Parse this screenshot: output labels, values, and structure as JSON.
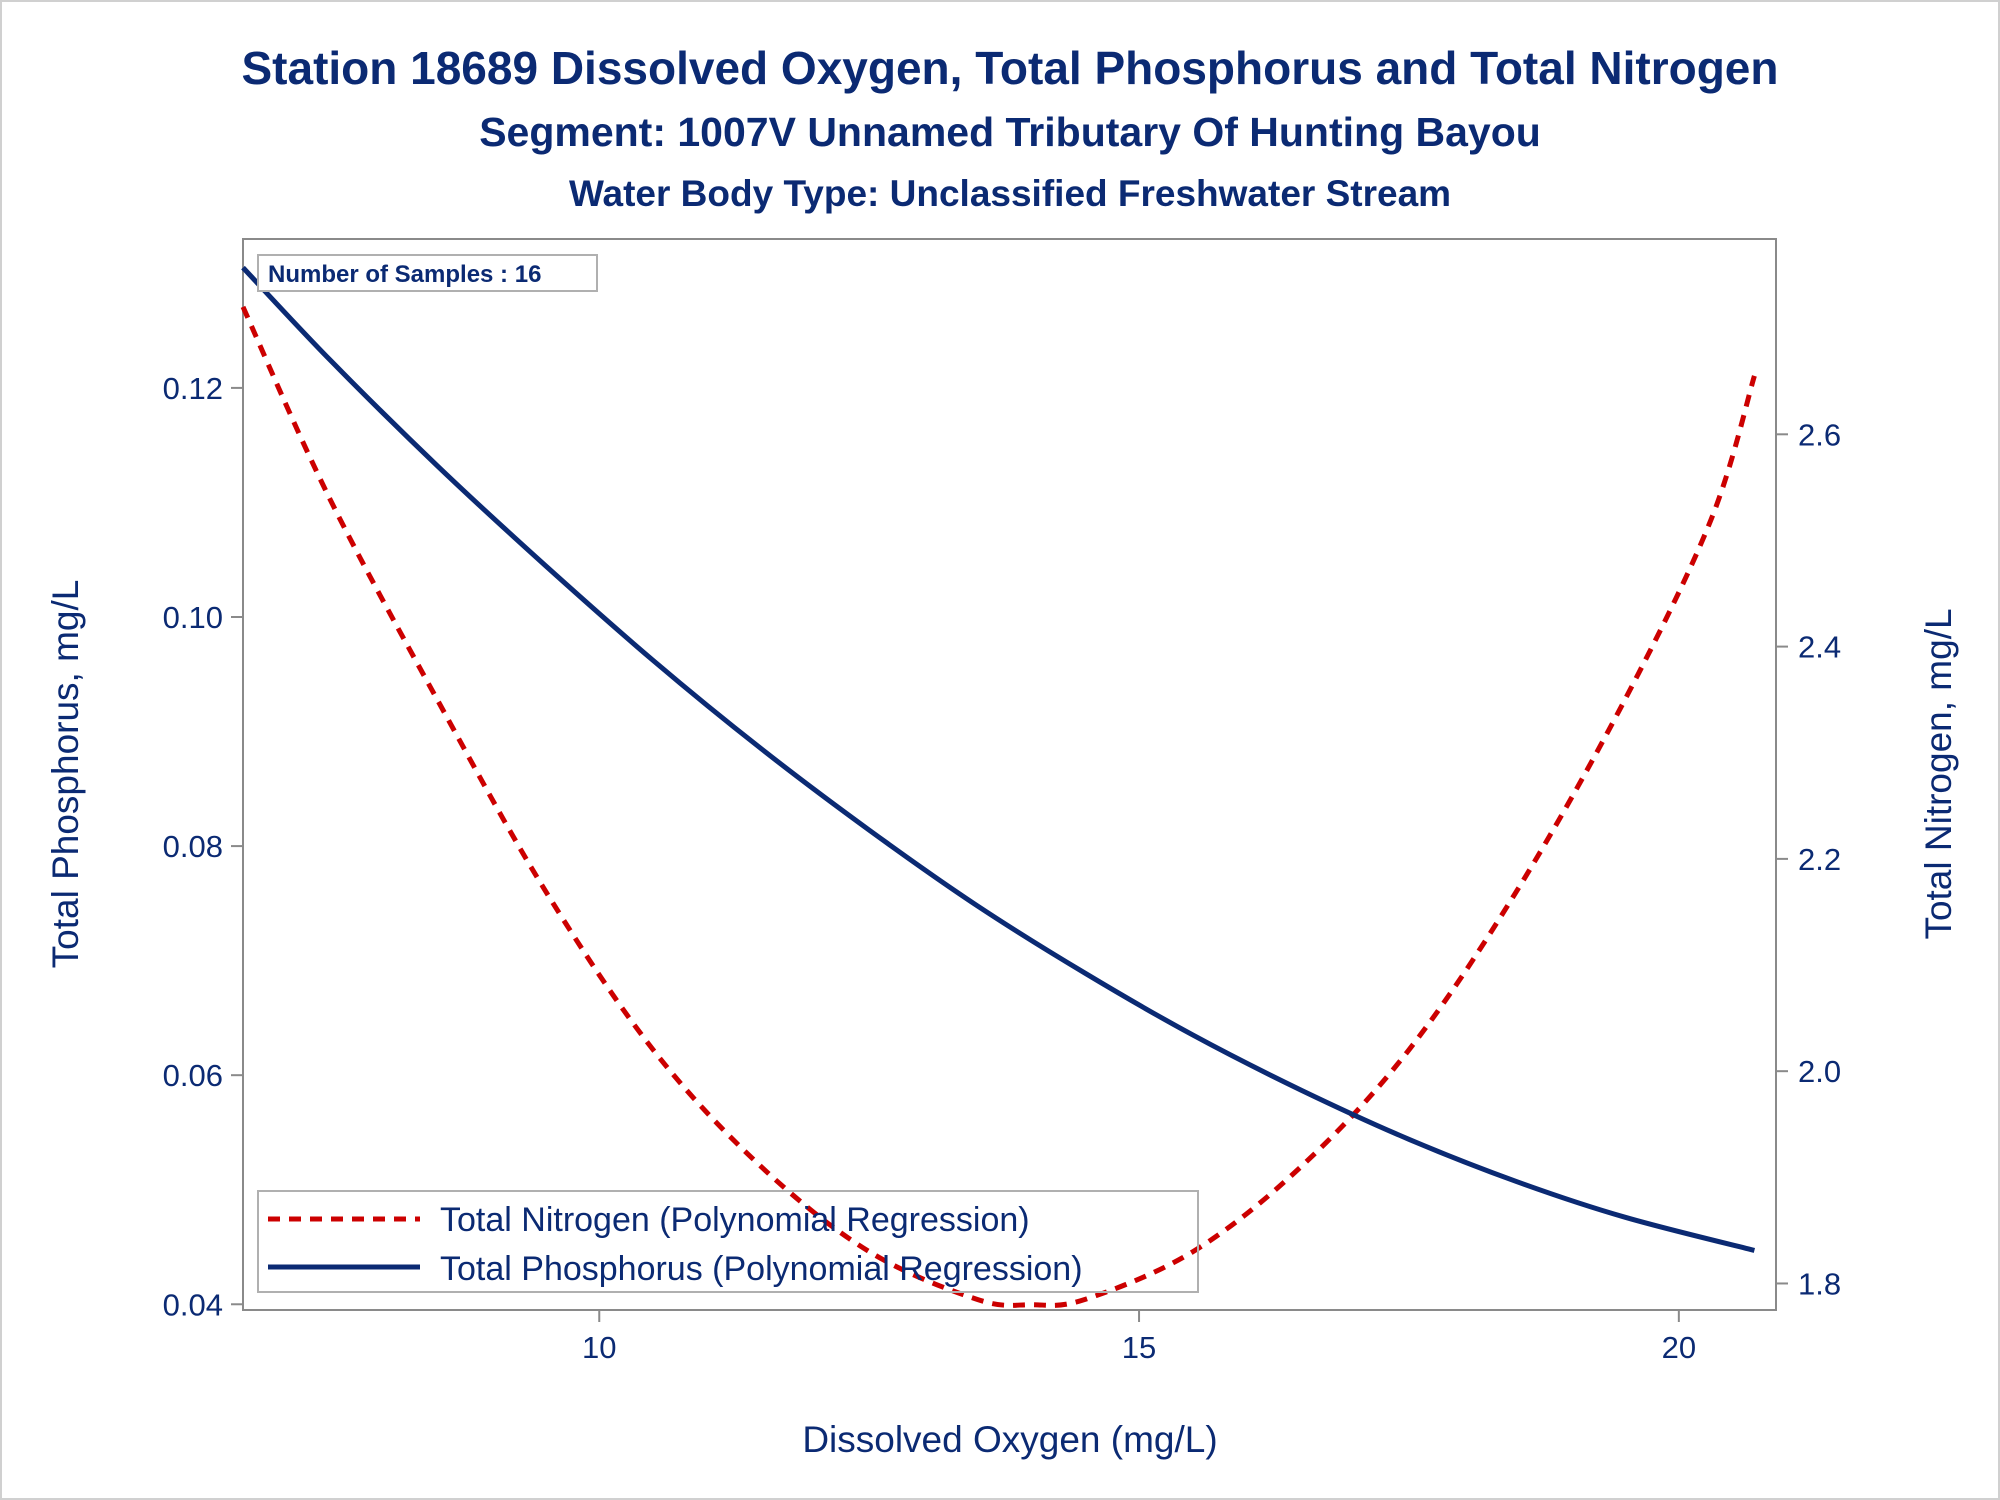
{
  "chart_data": {
    "type": "line",
    "title": "Station 18689  Dissolved Oxygen, Total Phosphorus and Total Nitrogen",
    "subtitle": "Segment: 1007V  Unnamed Tributary Of Hunting Bayou",
    "subtitle2": "Water Body Type: Unclassified Freshwater Stream",
    "xlabel": "Dissolved Oxygen (mg/L)",
    "ylabel": "Total Phosphorus, mg/L",
    "y2label": "Total Nitrogen, mg/L",
    "xlim": [
      6.7,
      20.9
    ],
    "ylim": [
      0.0395,
      0.133
    ],
    "y2lim": [
      1.775,
      2.784
    ],
    "xticks": [
      "10",
      "15",
      "20"
    ],
    "xtick_values": [
      10,
      15,
      20
    ],
    "yticks": [
      "0.04",
      "0.06",
      "0.08",
      "0.10",
      "0.12"
    ],
    "ytick_values": [
      0.04,
      0.06,
      0.08,
      0.1,
      0.12
    ],
    "y2ticks": [
      "1.8",
      "2.0",
      "2.2",
      "2.4",
      "2.6"
    ],
    "y2tick_values": [
      1.8,
      2.0,
      2.2,
      2.4,
      2.6
    ],
    "annotation": "Number of Samples : 16",
    "grid": false,
    "legend_position": "bottom-left",
    "series": [
      {
        "name": "Total Nitrogen (Polynomial Regression)",
        "axis": "right",
        "color": "#cc0000",
        "style": "dashed",
        "x": [
          6.7,
          7.5,
          8.5,
          9.5,
          10.5,
          11.5,
          12.5,
          13.5,
          14.0,
          14.5,
          15.5,
          16.5,
          17.5,
          18.5,
          19.5,
          20.3,
          20.7
        ],
        "values": [
          2.72,
          2.54,
          2.35,
          2.17,
          2.02,
          1.91,
          1.83,
          1.785,
          1.78,
          1.785,
          1.83,
          1.91,
          2.02,
          2.17,
          2.35,
          2.52,
          2.655
        ]
      },
      {
        "name": "Total Phosphorus (Polynomial Regression)",
        "axis": "left",
        "color": "#0b2a73",
        "style": "solid",
        "x": [
          6.7,
          7.5,
          8.5,
          9.5,
          10.5,
          11.5,
          12.5,
          13.5,
          14.5,
          15.5,
          16.5,
          17.5,
          18.5,
          19.5,
          20.7
        ],
        "values": [
          0.1305,
          0.1225,
          0.1132,
          0.1045,
          0.0962,
          0.0885,
          0.0814,
          0.0748,
          0.0689,
          0.0635,
          0.0587,
          0.0544,
          0.0507,
          0.0476,
          0.0447
        ]
      }
    ]
  }
}
